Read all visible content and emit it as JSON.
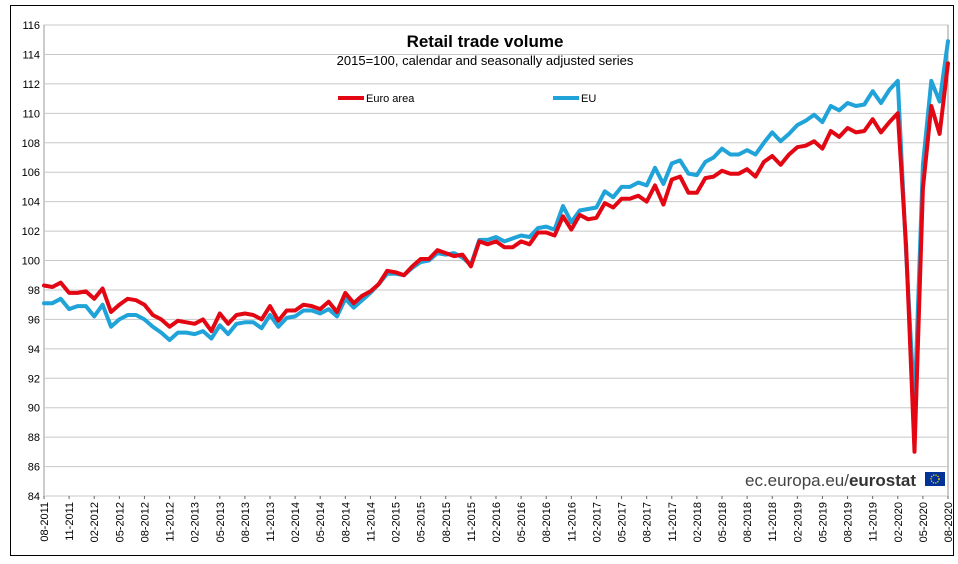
{
  "chart_data": {
    "type": "line",
    "title": "Retail trade volume",
    "subtitle": "2015=100,  calendar and seasonally adjusted series",
    "xlabel": "",
    "ylabel": "",
    "ylim": [
      84,
      116
    ],
    "yticks": [
      84,
      86,
      88,
      90,
      92,
      94,
      96,
      98,
      100,
      102,
      104,
      106,
      108,
      110,
      112,
      114,
      116
    ],
    "x_start": "08-2011",
    "x_tick_labels": [
      "08-2011",
      "11-2011",
      "02-2012",
      "05-2012",
      "08-2012",
      "11-2012",
      "02-2013",
      "05-2013",
      "08-2013",
      "11-2013",
      "02-2014",
      "05-2014",
      "08-2014",
      "11-2014",
      "02-2015",
      "05-2015",
      "08-2015",
      "11-2015",
      "02-2016",
      "05-2016",
      "08-2016",
      "11-2016",
      "02-2017",
      "05-2017",
      "08-2017",
      "11-2017",
      "02-2018",
      "05-2018",
      "08-2018",
      "11-2018",
      "02-2019",
      "05-2019",
      "08-2019",
      "11-2019",
      "02-2020",
      "05-2020",
      "08-2020"
    ],
    "grid": true,
    "series": [
      {
        "name": "Euro area",
        "color": "#e30613",
        "values": [
          98.3,
          98.2,
          98.5,
          97.8,
          97.8,
          97.9,
          97.4,
          98.1,
          96.5,
          97.0,
          97.4,
          97.3,
          97.0,
          96.3,
          96.0,
          95.5,
          95.9,
          95.8,
          95.7,
          96.0,
          95.2,
          96.4,
          95.7,
          96.3,
          96.4,
          96.3,
          96.0,
          96.9,
          95.9,
          96.6,
          96.6,
          97.0,
          96.9,
          96.7,
          97.2,
          96.5,
          97.8,
          97.1,
          97.6,
          97.9,
          98.4,
          99.3,
          99.2,
          99.0,
          99.6,
          100.1,
          100.1,
          100.7,
          100.5,
          100.3,
          100.4,
          99.6,
          101.3,
          101.1,
          101.3,
          100.9,
          100.9,
          101.3,
          101.1,
          101.9,
          101.9,
          101.7,
          103.0,
          102.1,
          103.1,
          102.8,
          102.9,
          103.9,
          103.6,
          104.2,
          104.2,
          104.4,
          104.0,
          105.1,
          103.8,
          105.5,
          105.7,
          104.6,
          104.6,
          105.6,
          105.7,
          106.1,
          105.9,
          105.9,
          106.2,
          105.7,
          106.7,
          107.1,
          106.5,
          107.2,
          107.7,
          107.8,
          108.1,
          107.6,
          108.8,
          108.4,
          109.0,
          108.7,
          108.8,
          109.6,
          108.7,
          109.4,
          110.0,
          101.0,
          87.0,
          104.9,
          110.5,
          108.6,
          113.4
        ]
      },
      {
        "name": "EU",
        "color": "#1fa3d8",
        "values": [
          97.1,
          97.1,
          97.4,
          96.7,
          96.9,
          96.9,
          96.2,
          97.0,
          95.5,
          96.0,
          96.3,
          96.3,
          96.0,
          95.5,
          95.1,
          94.6,
          95.1,
          95.1,
          95.0,
          95.2,
          94.7,
          95.6,
          95.0,
          95.7,
          95.8,
          95.8,
          95.4,
          96.3,
          95.5,
          96.1,
          96.2,
          96.6,
          96.6,
          96.4,
          96.7,
          96.2,
          97.4,
          96.8,
          97.3,
          97.8,
          98.4,
          99.1,
          99.1,
          99.0,
          99.5,
          99.9,
          100.0,
          100.5,
          100.4,
          100.5,
          100.2,
          99.7,
          101.4,
          101.4,
          101.6,
          101.3,
          101.5,
          101.7,
          101.6,
          102.2,
          102.3,
          102.1,
          103.7,
          102.6,
          103.4,
          103.5,
          103.6,
          104.7,
          104.3,
          105.0,
          105.0,
          105.3,
          105.1,
          106.3,
          105.2,
          106.6,
          106.8,
          105.9,
          105.8,
          106.7,
          107.0,
          107.6,
          107.2,
          107.2,
          107.5,
          107.2,
          108.0,
          108.7,
          108.1,
          108.6,
          109.2,
          109.5,
          109.9,
          109.4,
          110.5,
          110.2,
          110.7,
          110.5,
          110.6,
          111.5,
          110.7,
          111.6,
          112.2,
          100.5,
          90.0,
          106.5,
          112.2,
          110.8,
          114.9
        ]
      }
    ],
    "legend": [
      {
        "label": "Euro area",
        "color": "#e30613"
      },
      {
        "label": "EU",
        "color": "#1fa3d8"
      }
    ],
    "legend_position": "top",
    "watermark": {
      "prefix": "ec.europa.eu/",
      "brand": "eurostat"
    }
  }
}
